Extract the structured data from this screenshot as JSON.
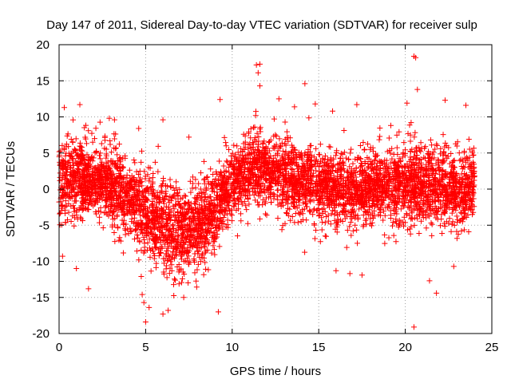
{
  "chart_data": {
    "type": "scatter",
    "title": "Day 147 of 2011, Sidereal Day-to-day VTEC variation (SDTVAR) for receiver sulp",
    "xlabel": "GPS time / hours",
    "ylabel": "SDTVAR / TECUs",
    "xlim": [
      0,
      25
    ],
    "ylim": [
      -20,
      20
    ],
    "x_ticks": [
      0,
      5,
      10,
      15,
      20,
      25
    ],
    "x_tick_labels": [
      "0",
      "5",
      "10",
      "15",
      "20",
      "25"
    ],
    "y_ticks": [
      -20,
      -15,
      -10,
      -5,
      0,
      5,
      10,
      15,
      20
    ],
    "y_tick_labels": [
      "-20",
      "-15",
      "-10",
      "-5",
      "0",
      "5",
      "10",
      "15",
      "20"
    ],
    "grid": true,
    "marker": "+",
    "color": "#ff0000",
    "x_data_range": [
      0,
      24
    ],
    "series": [
      {
        "name": "SDTVAR",
        "trend": [
          {
            "x": 0,
            "y": 1.0
          },
          {
            "x": 1,
            "y": 1.5
          },
          {
            "x": 2,
            "y": 1.5
          },
          {
            "x": 3,
            "y": 0.5
          },
          {
            "x": 4,
            "y": -1.5
          },
          {
            "x": 5,
            "y": -3.5
          },
          {
            "x": 6,
            "y": -5.5
          },
          {
            "x": 7,
            "y": -6.0
          },
          {
            "x": 8,
            "y": -5.0
          },
          {
            "x": 9,
            "y": -3.0
          },
          {
            "x": 10,
            "y": 1.0
          },
          {
            "x": 11,
            "y": 2.5
          },
          {
            "x": 12,
            "y": 2.5
          },
          {
            "x": 13,
            "y": 2.0
          },
          {
            "x": 14,
            "y": 1.0
          },
          {
            "x": 15,
            "y": 0.5
          },
          {
            "x": 16,
            "y": 0.0
          },
          {
            "x": 17,
            "y": -0.5
          },
          {
            "x": 18,
            "y": 0.0
          },
          {
            "x": 19,
            "y": 0.5
          },
          {
            "x": 20,
            "y": 1.0
          },
          {
            "x": 21,
            "y": 0.5
          },
          {
            "x": 22,
            "y": 0.0
          },
          {
            "x": 23,
            "y": 0.0
          },
          {
            "x": 24,
            "y": 0.5
          }
        ],
        "spread": [
          {
            "x": 0,
            "s": 2.8
          },
          {
            "x": 2,
            "s": 2.6
          },
          {
            "x": 4,
            "s": 2.8
          },
          {
            "x": 6,
            "s": 3.2
          },
          {
            "x": 8,
            "s": 3.0
          },
          {
            "x": 10,
            "s": 2.6
          },
          {
            "x": 12,
            "s": 2.6
          },
          {
            "x": 14,
            "s": 2.6
          },
          {
            "x": 16,
            "s": 2.6
          },
          {
            "x": 18,
            "s": 2.6
          },
          {
            "x": 20,
            "s": 2.8
          },
          {
            "x": 22,
            "s": 2.6
          },
          {
            "x": 24,
            "s": 2.4
          }
        ],
        "outliers": [
          [
            0.3,
            11.3
          ],
          [
            1.2,
            11.7
          ],
          [
            2.9,
            9.8
          ],
          [
            3.2,
            9.6
          ],
          [
            4.6,
            8.4
          ],
          [
            6.0,
            9.6
          ],
          [
            7.5,
            7.2
          ],
          [
            9.3,
            12.4
          ],
          [
            11.4,
            17.2
          ],
          [
            11.6,
            17.3
          ],
          [
            11.5,
            16.1
          ],
          [
            11.6,
            14.3
          ],
          [
            12.7,
            12.5
          ],
          [
            13.6,
            11.4
          ],
          [
            14.2,
            14.6
          ],
          [
            14.8,
            11.8
          ],
          [
            15.8,
            10.8
          ],
          [
            17.2,
            11.7
          ],
          [
            20.1,
            11.9
          ],
          [
            20.5,
            18.4
          ],
          [
            20.6,
            18.2
          ],
          [
            20.7,
            13.8
          ],
          [
            22.3,
            12.3
          ],
          [
            23.5,
            11.6
          ],
          [
            0.2,
            -9.3
          ],
          [
            1.0,
            -11.0
          ],
          [
            1.7,
            -13.8
          ],
          [
            4.8,
            -14.6
          ],
          [
            4.9,
            -15.7
          ],
          [
            5.2,
            -16.4
          ],
          [
            5.0,
            -18.4
          ],
          [
            6.0,
            -17.3
          ],
          [
            6.3,
            -16.8
          ],
          [
            7.2,
            -15.0
          ],
          [
            9.2,
            -17.0
          ],
          [
            16.0,
            -11.3
          ],
          [
            16.8,
            -11.7
          ],
          [
            17.5,
            -11.9
          ],
          [
            20.5,
            -19.1
          ],
          [
            21.8,
            -14.4
          ],
          [
            21.4,
            -12.7
          ],
          [
            22.8,
            -10.7
          ]
        ],
        "n_points": 5200
      }
    ]
  }
}
